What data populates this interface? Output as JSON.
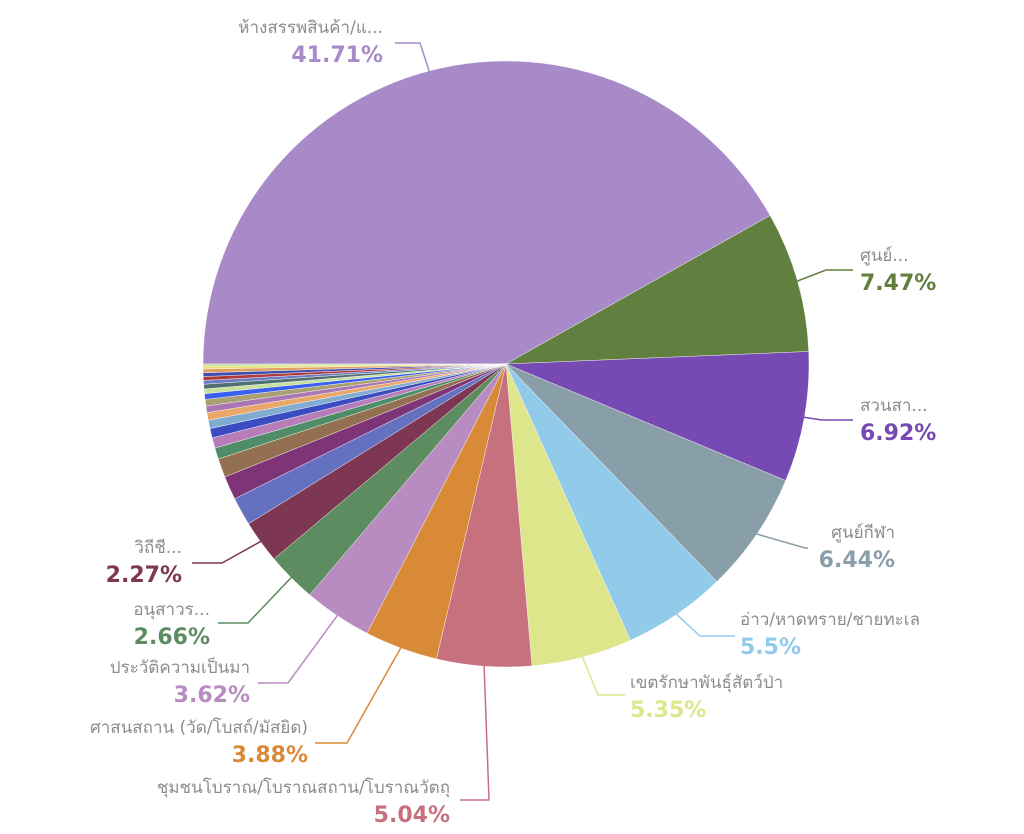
{
  "chart_data": {
    "type": "pie",
    "start": "9 o'clock, clockwise",
    "slices": [
      {
        "label": "ห้างสรรพสินค้า/แ...",
        "value": 41.71,
        "value_label": "41.71%",
        "color": "#a98ac8"
      },
      {
        "label": "ศูนย์...",
        "value": 7.47,
        "value_label": "7.47%",
        "color": "#617f3f"
      },
      {
        "label": "สวนสา...",
        "value": 6.92,
        "value_label": "6.92%",
        "color": "#7649b3"
      },
      {
        "label": "ศูนย์กีฬา",
        "value": 6.44,
        "value_label": "6.44%",
        "color": "#889ea9"
      },
      {
        "label": "อ่าว/หาดทราย/ชายทะเล",
        "value": 5.5,
        "value_label": "5.5%",
        "color": "#92cbea"
      },
      {
        "label": "เขตรักษาพันธุ์สัตว์ป่า",
        "value": 5.35,
        "value_label": "5.35%",
        "color": "#dde68a"
      },
      {
        "label": "ชุมชนโบราณ/โบราณสถาน/โบราณวัตถุ",
        "value": 5.04,
        "value_label": "5.04%",
        "color": "#c7717e"
      },
      {
        "label": "ศาสนสถาน (วัด/โบสถ์/มัสยิด)",
        "value": 3.88,
        "value_label": "3.88%",
        "color": "#d98a37"
      },
      {
        "label": "ประวัติความเป็นมา",
        "value": 3.62,
        "value_label": "3.62%",
        "color": "#b88cc0"
      },
      {
        "label": "อนุสาวร...",
        "value": 2.66,
        "value_label": "2.66%",
        "color": "#5c8c5f"
      },
      {
        "label": "วิถีชี...",
        "value": 2.27,
        "value_label": "2.27%",
        "color": "#7d3752"
      }
    ],
    "unlabeled_slices": [
      {
        "value": 1.5,
        "color": "#6470c0"
      },
      {
        "value": 1.25,
        "color": "#7e3476"
      },
      {
        "value": 1.0,
        "color": "#947052"
      },
      {
        "value": 0.6,
        "color": "#4f8c68"
      },
      {
        "value": 0.55,
        "color": "#b77db8"
      },
      {
        "value": 0.5,
        "color": "#3a4cc0"
      },
      {
        "value": 0.45,
        "color": "#82abd0"
      },
      {
        "value": 0.4,
        "color": "#e8a86a"
      },
      {
        "value": 0.35,
        "color": "#a977b4"
      },
      {
        "value": 0.35,
        "color": "#a9a173"
      },
      {
        "value": 0.3,
        "color": "#3a5ef0"
      },
      {
        "value": 0.25,
        "color": "#c6e0a0"
      },
      {
        "value": 0.25,
        "color": "#4f7070"
      },
      {
        "value": 0.2,
        "color": "#6b7cc0"
      },
      {
        "value": 0.2,
        "color": "#b03a3a"
      },
      {
        "value": 0.2,
        "color": "#3f4fb0"
      },
      {
        "value": 0.2,
        "color": "#e0a060"
      },
      {
        "value": 0.14,
        "color": "#e8e070"
      },
      {
        "value": 0.12,
        "color": "#c6e0a0"
      }
    ]
  }
}
